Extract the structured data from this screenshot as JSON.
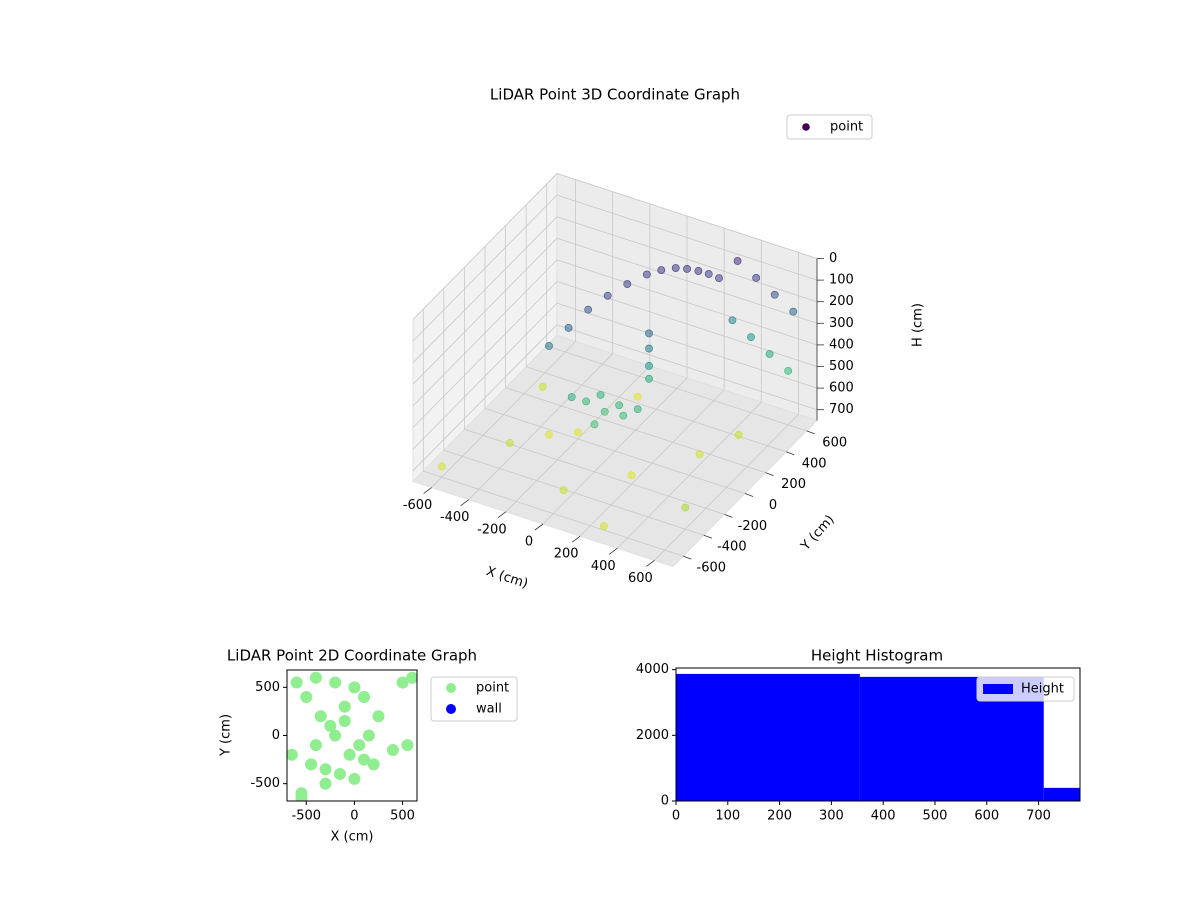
{
  "chart_data": [
    {
      "type": "scatter3d",
      "title": "LiDAR Point 3D Coordinate Graph",
      "xlabel": "X (cm)",
      "ylabel": "Y (cm)",
      "zlabel": "H (cm)",
      "xlim": [
        -700,
        700
      ],
      "ylim": [
        -700,
        700
      ],
      "zlim": [
        750,
        0
      ],
      "zinverted": true,
      "xticks": [
        -600,
        -400,
        -200,
        0,
        200,
        400,
        600
      ],
      "yticks": [
        -600,
        -400,
        -200,
        0,
        200,
        400,
        600
      ],
      "zticks": [
        0,
        100,
        200,
        300,
        400,
        500,
        600,
        700
      ],
      "colormap": "viridis",
      "legend": "upper right",
      "grid": true,
      "series": [
        {
          "name": "point",
          "color": "#440154",
          "x": [
            -300,
            -250,
            -200,
            -150,
            -100,
            -50,
            0,
            50,
            100,
            150,
            200,
            250,
            -100,
            -50,
            0,
            50,
            100,
            150,
            -150,
            0,
            100,
            100,
            100,
            100,
            300,
            400,
            500,
            600,
            300,
            400,
            500,
            600,
            -600,
            -400,
            -200,
            0,
            200,
            400,
            600,
            -500,
            -100,
            300,
            500,
            -300
          ],
          "y": [
            -100,
            0,
            100,
            200,
            300,
            400,
            450,
            500,
            520,
            540,
            550,
            560,
            -100,
            -50,
            -100,
            -50,
            -100,
            -50,
            -150,
            -200,
            150,
            150,
            150,
            150,
            650,
            650,
            650,
            650,
            600,
            600,
            600,
            600,
            -600,
            -300,
            0,
            -500,
            -200,
            100,
            -400,
            200,
            400,
            -650,
            300,
            -100
          ],
          "z": [
            300,
            250,
            200,
            170,
            150,
            140,
            130,
            130,
            130,
            135,
            140,
            150,
            500,
            480,
            520,
            500,
            510,
            490,
            470,
            530,
            250,
            320,
            400,
            460,
            100,
            150,
            200,
            250,
            350,
            400,
            450,
            500,
            700,
            680,
            720,
            690,
            710,
            700,
            650,
            690,
            720,
            700,
            680,
            710
          ]
        }
      ]
    },
    {
      "type": "scatter",
      "title": "LiDAR Point 2D Coordinate Graph",
      "xlabel": "X (cm)",
      "ylabel": "Y (cm)",
      "xlim": [
        -700,
        650
      ],
      "ylim": [
        -680,
        680
      ],
      "xticks": [
        -500,
        0,
        500
      ],
      "yticks": [
        -500,
        0,
        500
      ],
      "legend": "outside right",
      "series": [
        {
          "name": "point",
          "color": "#90ee90",
          "x": [
            -600,
            -550,
            -500,
            -450,
            -400,
            -350,
            -300,
            -250,
            -200,
            -150,
            -100,
            -50,
            0,
            50,
            100,
            150,
            200,
            250,
            -400,
            -300,
            -200,
            -100,
            0,
            100,
            500,
            550,
            600,
            400,
            -650,
            -550
          ],
          "y": [
            550,
            -600,
            400,
            -300,
            600,
            200,
            -500,
            100,
            550,
            -400,
            300,
            -200,
            500,
            -100,
            400,
            0,
            -300,
            200,
            -100,
            -350,
            0,
            150,
            -450,
            -250,
            550,
            -100,
            600,
            -150,
            -200,
            -650
          ]
        },
        {
          "name": "wall",
          "color": "#0000ff",
          "x": [],
          "y": []
        }
      ]
    },
    {
      "type": "histogram",
      "title": "Height Histogram",
      "bins": [
        0,
        355,
        710,
        780
      ],
      "counts": [
        3870,
        3780,
        400
      ],
      "color": "#0000ff",
      "series_name": "Height",
      "xlim": [
        0,
        780
      ],
      "ylim": [
        0,
        4050
      ],
      "xticks": [
        0,
        100,
        200,
        300,
        400,
        500,
        600,
        700
      ],
      "yticks": [
        0,
        2000,
        4000
      ],
      "legend": "upper right"
    }
  ]
}
